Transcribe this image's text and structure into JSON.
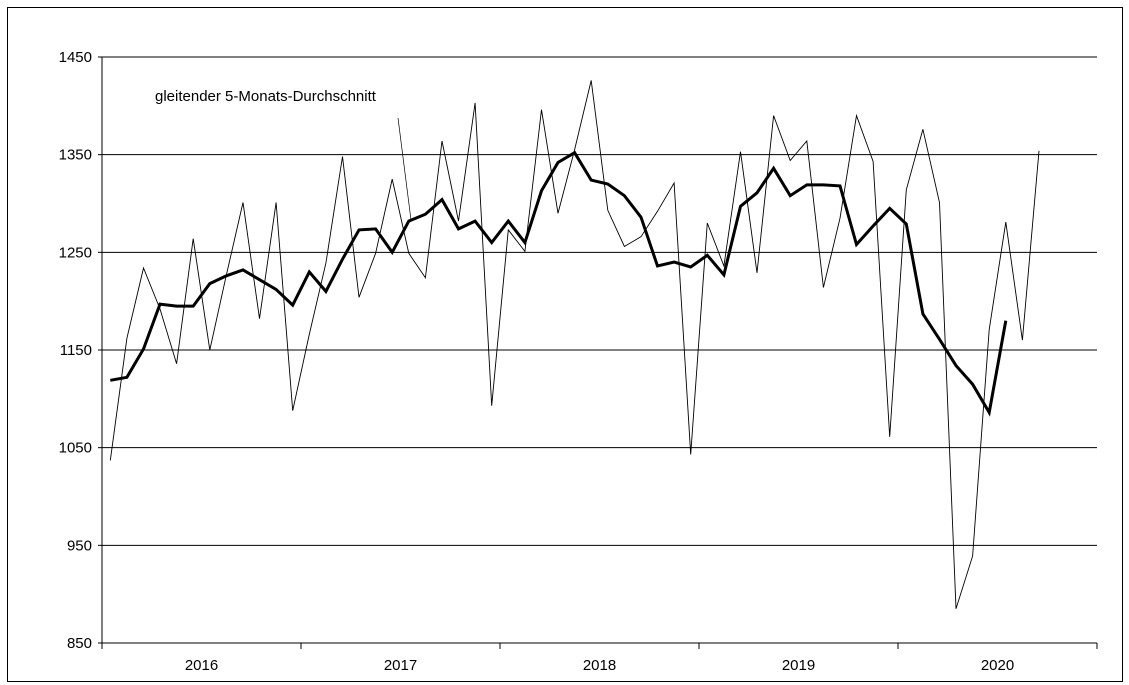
{
  "chart_data": {
    "type": "line",
    "title": "",
    "xlabel": "",
    "ylabel": "",
    "ylim": [
      850,
      1450
    ],
    "yticks": [
      850,
      950,
      1050,
      1150,
      1250,
      1350,
      1450
    ],
    "year_labels": [
      "2016",
      "2017",
      "2018",
      "2019",
      "2020"
    ],
    "grid": "horizontal",
    "annotation": "gleitender 5-Monats-Durchschnitt",
    "x_start": "2016-01",
    "series": [
      {
        "style": "thin",
        "values": [
          1037,
          1162,
          1234,
          1192,
          1136,
          1264,
          1150,
          1227,
          1301,
          1182,
          1301,
          1088,
          1166,
          1239,
          1348,
          1204,
          1249,
          1325,
          1249,
          1224,
          1364,
          1282,
          1403,
          1093,
          1273,
          1251,
          1396,
          1290,
          1355,
          1426,
          1293,
          1256,
          1266,
          1292,
          1321,
          1043,
          1280,
          1236,
          1353,
          1229,
          1390,
          1344,
          1364,
          1214,
          1285,
          1390,
          1343,
          1061,
          1314,
          1376,
          1301,
          885,
          939,
          1171,
          1281,
          1160,
          1354
        ]
      },
      {
        "style": "thick",
        "values": [
          1119,
          1122,
          1151,
          1197,
          1195,
          1195,
          1218,
          1226,
          1232,
          1222,
          1212,
          1196,
          1230,
          1210,
          1243,
          1273,
          1274,
          1250,
          1282,
          1289,
          1304,
          1274,
          1282,
          1260,
          1282,
          1260,
          1313,
          1342,
          1352,
          1324,
          1320,
          1308,
          1286,
          1236,
          1240,
          1235,
          1247,
          1227,
          1297,
          1311,
          1336,
          1308,
          1319,
          1319,
          1318,
          1258,
          1277,
          1295,
          1279,
          1187,
          1161,
          1134,
          1115,
          1086,
          1180
        ]
      }
    ]
  }
}
